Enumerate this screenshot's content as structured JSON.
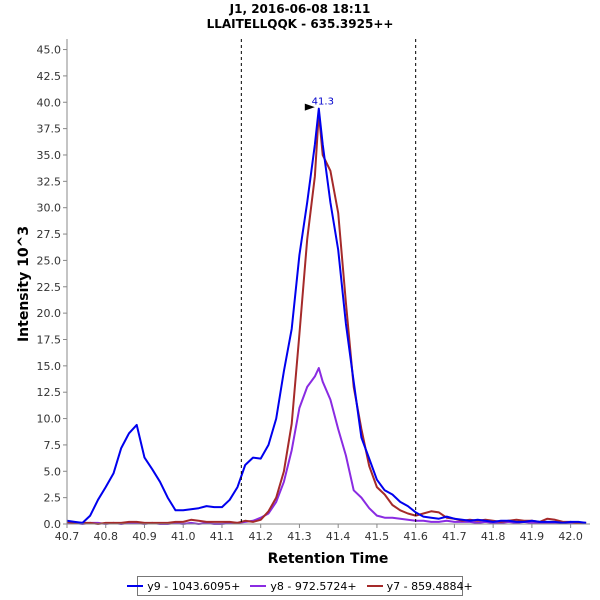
{
  "chart_data": {
    "type": "line",
    "title": "J1, 2016-06-08 18:11",
    "subtitle": "LLAITELLQQK - 635.3925++",
    "xlabel": "Retention Time",
    "ylabel": "Intensity 10^3",
    "xlim": [
      40.7,
      42.05
    ],
    "ylim": [
      0,
      46
    ],
    "xticks": [
      "40.7",
      "40.8",
      "40.9",
      "41.0",
      "41.1",
      "41.2",
      "41.3",
      "41.4",
      "41.5",
      "41.6",
      "41.7",
      "41.8",
      "41.9",
      "42.0"
    ],
    "yticks": [
      "0.0",
      "2.5",
      "5.0",
      "7.5",
      "10.0",
      "12.5",
      "15.0",
      "17.5",
      "20.0",
      "22.5",
      "25.0",
      "27.5",
      "30.0",
      "32.5",
      "35.0",
      "37.5",
      "40.0",
      "42.5",
      "45.0"
    ],
    "boundaries": [
      41.15,
      41.6
    ],
    "peak_label": "41.3",
    "peak": {
      "x": 41.35,
      "y": 39.4
    },
    "series": [
      {
        "name": "y9 - 1043.6095+",
        "color": "#0000ee",
        "x": [
          40.7,
          40.72,
          40.74,
          40.76,
          40.78,
          40.8,
          40.82,
          40.84,
          40.86,
          40.88,
          40.9,
          40.92,
          40.94,
          40.96,
          40.98,
          41.0,
          41.02,
          41.04,
          41.06,
          41.08,
          41.1,
          41.12,
          41.14,
          41.16,
          41.18,
          41.2,
          41.22,
          41.24,
          41.26,
          41.28,
          41.3,
          41.32,
          41.34,
          41.35,
          41.36,
          41.38,
          41.4,
          41.42,
          41.44,
          41.46,
          41.48,
          41.5,
          41.52,
          41.54,
          41.56,
          41.58,
          41.6,
          41.62,
          41.64,
          41.66,
          41.68,
          41.7,
          41.72,
          41.74,
          41.76,
          41.78,
          41.8,
          41.82,
          41.84,
          41.86,
          41.88,
          41.9,
          41.92,
          41.94,
          41.96,
          41.98,
          42.0,
          42.02,
          42.04
        ],
        "y": [
          0.3,
          0.2,
          0.1,
          0.8,
          2.3,
          3.5,
          4.8,
          7.2,
          8.6,
          9.4,
          6.3,
          5.2,
          4.0,
          2.5,
          1.3,
          1.3,
          1.4,
          1.5,
          1.7,
          1.6,
          1.6,
          2.3,
          3.5,
          5.6,
          6.3,
          6.2,
          7.5,
          10.0,
          14.5,
          18.5,
          25.5,
          30.5,
          36.0,
          39.4,
          36.0,
          30.5,
          26.0,
          19.0,
          13.5,
          8.2,
          6.2,
          4.2,
          3.2,
          2.8,
          2.1,
          1.7,
          1.1,
          0.7,
          0.6,
          0.5,
          0.7,
          0.5,
          0.4,
          0.3,
          0.4,
          0.3,
          0.2,
          0.3,
          0.3,
          0.2,
          0.2,
          0.3,
          0.2,
          0.2,
          0.2,
          0.1,
          0.2,
          0.2,
          0.1
        ]
      },
      {
        "name": "y8 - 972.5724+",
        "color": "#8a2be2",
        "x": [
          40.7,
          40.72,
          40.74,
          40.76,
          40.78,
          40.8,
          40.82,
          40.84,
          40.86,
          40.88,
          40.9,
          40.92,
          40.94,
          40.96,
          40.98,
          41.0,
          41.02,
          41.04,
          41.06,
          41.08,
          41.1,
          41.12,
          41.14,
          41.16,
          41.18,
          41.2,
          41.22,
          41.24,
          41.26,
          41.28,
          41.3,
          41.32,
          41.34,
          41.35,
          41.36,
          41.38,
          41.4,
          41.42,
          41.44,
          41.46,
          41.48,
          41.5,
          41.52,
          41.54,
          41.56,
          41.58,
          41.6,
          41.62,
          41.64,
          41.66,
          41.68,
          41.7,
          41.72,
          41.74,
          41.76,
          41.78,
          41.8,
          41.82,
          41.84,
          41.86,
          41.88,
          41.9,
          41.92,
          41.94,
          41.96,
          41.98,
          42.0,
          42.02,
          42.04
        ],
        "y": [
          0.1,
          0.1,
          0.0,
          0.1,
          0.1,
          0.0,
          0.1,
          0.0,
          0.1,
          0.1,
          0.0,
          0.1,
          0.0,
          0.0,
          0.1,
          0.0,
          0.1,
          0.0,
          0.1,
          0.0,
          0.0,
          0.1,
          0.1,
          0.2,
          0.3,
          0.6,
          1.0,
          2.1,
          4.0,
          7.0,
          11.0,
          13.0,
          14.0,
          14.8,
          13.5,
          11.8,
          9.0,
          6.5,
          3.2,
          2.5,
          1.5,
          0.8,
          0.6,
          0.6,
          0.5,
          0.4,
          0.3,
          0.3,
          0.2,
          0.2,
          0.3,
          0.2,
          0.2,
          0.2,
          0.1,
          0.2,
          0.1,
          0.1,
          0.2,
          0.1,
          0.2,
          0.1,
          0.1,
          0.1,
          0.1,
          0.1,
          0.1,
          0.1,
          0.1
        ]
      },
      {
        "name": "y7 - 859.4884+",
        "color": "#a52a2a",
        "x": [
          40.7,
          40.72,
          40.74,
          40.76,
          40.78,
          40.8,
          40.82,
          40.84,
          40.86,
          40.88,
          40.9,
          40.92,
          40.94,
          40.96,
          40.98,
          41.0,
          41.02,
          41.04,
          41.06,
          41.08,
          41.1,
          41.12,
          41.14,
          41.16,
          41.18,
          41.2,
          41.22,
          41.24,
          41.26,
          41.28,
          41.3,
          41.32,
          41.34,
          41.35,
          41.36,
          41.38,
          41.4,
          41.42,
          41.44,
          41.46,
          41.48,
          41.5,
          41.52,
          41.54,
          41.56,
          41.58,
          41.6,
          41.62,
          41.64,
          41.66,
          41.68,
          41.7,
          41.72,
          41.74,
          41.76,
          41.78,
          41.8,
          41.82,
          41.84,
          41.86,
          41.88,
          41.9,
          41.92,
          41.94,
          41.96,
          41.98,
          42.0,
          42.02,
          42.04
        ],
        "y": [
          0.2,
          0.1,
          0.1,
          0.1,
          0.0,
          0.1,
          0.1,
          0.1,
          0.2,
          0.2,
          0.1,
          0.1,
          0.1,
          0.1,
          0.2,
          0.2,
          0.4,
          0.3,
          0.2,
          0.2,
          0.2,
          0.2,
          0.1,
          0.3,
          0.2,
          0.4,
          1.2,
          2.5,
          5.0,
          9.5,
          18.0,
          27.0,
          33.0,
          39.0,
          35.0,
          33.5,
          29.5,
          21.0,
          13.0,
          9.0,
          5.5,
          3.5,
          2.8,
          1.8,
          1.3,
          1.0,
          0.8,
          1.0,
          1.2,
          1.1,
          0.6,
          0.5,
          0.3,
          0.4,
          0.3,
          0.4,
          0.3,
          0.2,
          0.3,
          0.4,
          0.3,
          0.3,
          0.2,
          0.5,
          0.4,
          0.2,
          0.2,
          0.1,
          0.1
        ]
      }
    ]
  }
}
